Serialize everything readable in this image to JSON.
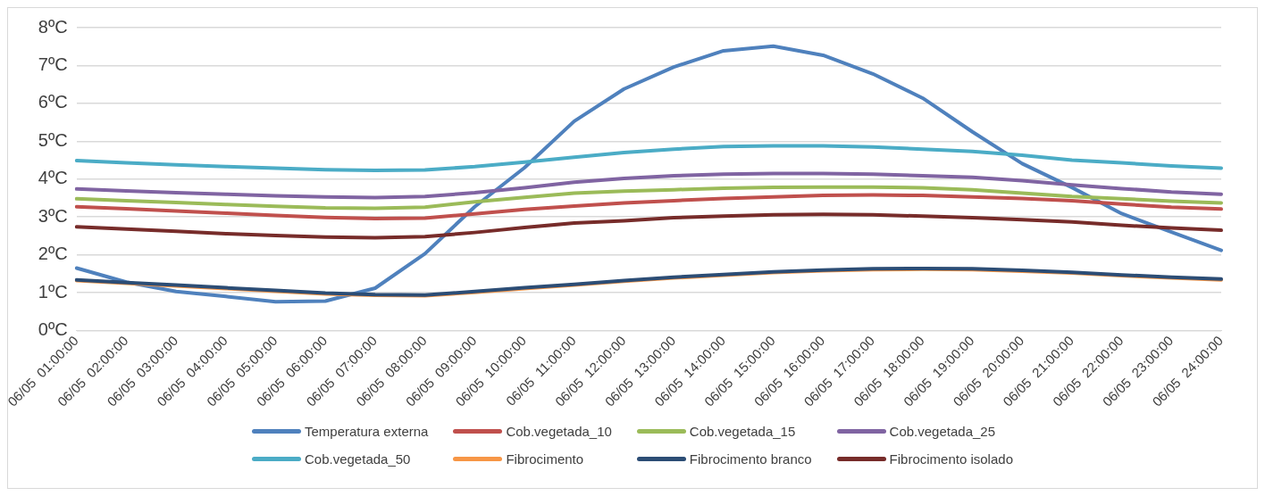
{
  "chart_data": {
    "type": "line",
    "categories": [
      "06/05  01:00:00",
      "06/05  02:00:00",
      "06/05  03:00:00",
      "06/05  04:00:00",
      "06/05  05:00:00",
      "06/05  06:00:00",
      "06/05  07:00:00",
      "06/05  08:00:00",
      "06/05  09:00:00",
      "06/05  10:00:00",
      "06/05  11:00:00",
      "06/05  12:00:00",
      "06/05  13:00:00",
      "06/05  14:00:00",
      "06/05  15:00:00",
      "06/05  16:00:00",
      "06/05  17:00:00",
      "06/05  18:00:00",
      "06/05  19:00:00",
      "06/05  20:00:00",
      "06/05  21:00:00",
      "06/05  22:00:00",
      "06/05  23:00:00",
      "06/05  24:00:00"
    ],
    "series": [
      {
        "name": "Temperatura externa",
        "color": "#4f81bd",
        "values": [
          1.65,
          1.28,
          1.03,
          0.9,
          0.76,
          0.78,
          1.12,
          2.03,
          3.27,
          4.3,
          5.53,
          6.38,
          6.96,
          7.39,
          7.51,
          7.27,
          6.78,
          6.14,
          5.25,
          4.41,
          3.78,
          3.09,
          2.6,
          2.12
        ]
      },
      {
        "name": "Cob.vegetada_10",
        "color": "#c0504d",
        "values": [
          3.27,
          3.22,
          3.16,
          3.1,
          3.04,
          2.99,
          2.96,
          2.97,
          3.08,
          3.2,
          3.29,
          3.37,
          3.43,
          3.49,
          3.53,
          3.57,
          3.58,
          3.57,
          3.53,
          3.49,
          3.43,
          3.34,
          3.26,
          3.21
        ]
      },
      {
        "name": "Cob.vegetada_15",
        "color": "#9bbb59",
        "values": [
          3.48,
          3.43,
          3.38,
          3.33,
          3.28,
          3.24,
          3.23,
          3.26,
          3.4,
          3.52,
          3.63,
          3.68,
          3.72,
          3.76,
          3.78,
          3.79,
          3.79,
          3.77,
          3.72,
          3.63,
          3.54,
          3.48,
          3.42,
          3.37
        ]
      },
      {
        "name": "Cob.vegetada_25",
        "color": "#8064a2",
        "values": [
          3.74,
          3.69,
          3.64,
          3.6,
          3.56,
          3.53,
          3.51,
          3.54,
          3.64,
          3.77,
          3.92,
          4.02,
          4.09,
          4.13,
          4.15,
          4.15,
          4.13,
          4.09,
          4.05,
          3.96,
          3.85,
          3.75,
          3.66,
          3.6
        ]
      },
      {
        "name": "Cob.vegetada_50",
        "color": "#4bacc6",
        "values": [
          4.49,
          4.43,
          4.38,
          4.33,
          4.29,
          4.25,
          4.23,
          4.24,
          4.33,
          4.45,
          4.58,
          4.7,
          4.79,
          4.86,
          4.88,
          4.88,
          4.85,
          4.79,
          4.73,
          4.63,
          4.5,
          4.43,
          4.35,
          4.29
        ]
      },
      {
        "name": "Fibrocimento",
        "color": "#f79646",
        "values": [
          1.32,
          1.25,
          1.18,
          1.11,
          1.04,
          0.97,
          0.93,
          0.92,
          1.01,
          1.11,
          1.2,
          1.3,
          1.39,
          1.46,
          1.53,
          1.58,
          1.61,
          1.62,
          1.61,
          1.57,
          1.52,
          1.45,
          1.39,
          1.34
        ]
      },
      {
        "name": "Fibrocimento branco",
        "color": "#2c4d75",
        "values": [
          1.34,
          1.27,
          1.2,
          1.13,
          1.06,
          0.99,
          0.95,
          0.94,
          1.03,
          1.13,
          1.22,
          1.32,
          1.41,
          1.48,
          1.55,
          1.6,
          1.63,
          1.64,
          1.63,
          1.59,
          1.54,
          1.47,
          1.41,
          1.36
        ]
      },
      {
        "name": "Fibrocimento isolado",
        "color": "#772c2a",
        "values": [
          2.74,
          2.68,
          2.62,
          2.56,
          2.51,
          2.47,
          2.45,
          2.48,
          2.59,
          2.72,
          2.84,
          2.9,
          2.98,
          3.02,
          3.06,
          3.07,
          3.06,
          3.02,
          2.98,
          2.93,
          2.87,
          2.78,
          2.71,
          2.65
        ]
      }
    ],
    "ylim": [
      0,
      8
    ],
    "yticks": [
      {
        "value": 0,
        "label": "0ºC"
      },
      {
        "value": 1,
        "label": "1ºC"
      },
      {
        "value": 2,
        "label": "2ºC"
      },
      {
        "value": 3,
        "label": "3ºC"
      },
      {
        "value": 4,
        "label": "4ºC"
      },
      {
        "value": 5,
        "label": "5ºC"
      },
      {
        "value": 6,
        "label": "6ºC"
      },
      {
        "value": 7,
        "label": "7ºC"
      },
      {
        "value": 8,
        "label": "8ºC"
      }
    ],
    "grid": "y",
    "legend": "bottom",
    "marker": "none",
    "line_style": "solid"
  }
}
